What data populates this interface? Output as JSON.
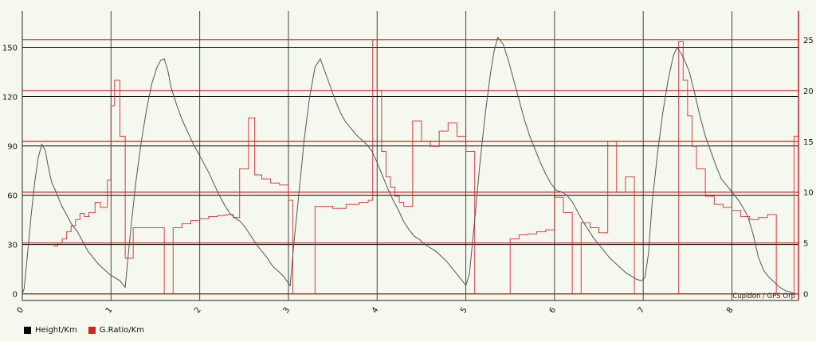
{
  "credit": "Cupidon / GPS Orp",
  "colors": {
    "background": "#f5f8ef",
    "height": "#555555",
    "ratio": "#d62a2a",
    "grid_black": "#000000",
    "grid_red": "#c91f1f"
  },
  "legend": [
    {
      "label": "Height/Km",
      "color": "#000000"
    },
    {
      "label": "G.Ratio/Km",
      "color": "#e02020"
    }
  ],
  "chart_data": {
    "type": "line",
    "x_label": "",
    "x_range": [
      0,
      8.75
    ],
    "x_ticks": [
      "0",
      "1",
      "2",
      "3",
      "4",
      "5",
      "6",
      "7",
      "8"
    ],
    "y_left": {
      "range": [
        -4,
        172
      ],
      "ticks": [
        "0",
        "30",
        "60",
        "90",
        "120",
        "150"
      ]
    },
    "y_right": {
      "range": [
        -0.65,
        27.8
      ],
      "ticks": [
        "0",
        "5",
        "10",
        "15",
        "20",
        "25"
      ]
    },
    "grid": true,
    "series": [
      {
        "name": "Height/Km",
        "axis": "left",
        "x": [
          0,
          0.02,
          0.06,
          0.1,
          0.14,
          0.18,
          0.22,
          0.26,
          0.29,
          0.33,
          0.38,
          0.44,
          0.5,
          0.56,
          0.62,
          0.68,
          0.74,
          0.8,
          0.86,
          0.92,
          0.98,
          1.04,
          1.1,
          1.16,
          1.22,
          1.28,
          1.34,
          1.4,
          1.46,
          1.52,
          1.56,
          1.6,
          1.64,
          1.68,
          1.74,
          1.8,
          1.86,
          1.92,
          1.98,
          2.04,
          2.1,
          2.16,
          2.22,
          2.28,
          2.34,
          2.4,
          2.46,
          2.52,
          2.58,
          2.64,
          2.7,
          2.76,
          2.82,
          2.88,
          2.94,
          2.98,
          3.02,
          3.06,
          3.12,
          3.18,
          3.24,
          3.3,
          3.36,
          3.4,
          3.46,
          3.52,
          3.58,
          3.64,
          3.7,
          3.76,
          3.82,
          3.88,
          3.94,
          4.0,
          4.06,
          4.12,
          4.18,
          4.24,
          4.3,
          4.36,
          4.42,
          4.48,
          4.54,
          4.6,
          4.66,
          4.72,
          4.78,
          4.84,
          4.9,
          4.96,
          5.0,
          5.04,
          5.1,
          5.16,
          5.22,
          5.28,
          5.32,
          5.36,
          5.42,
          5.48,
          5.54,
          5.6,
          5.66,
          5.72,
          5.78,
          5.84,
          5.9,
          5.96,
          6.02,
          6.08,
          6.14,
          6.2,
          6.26,
          6.32,
          6.38,
          6.44,
          6.5,
          6.56,
          6.62,
          6.68,
          6.74,
          6.8,
          6.86,
          6.92,
          6.98,
          7.02,
          7.06,
          7.1,
          7.16,
          7.22,
          7.28,
          7.34,
          7.38,
          7.42,
          7.46,
          7.52,
          7.58,
          7.64,
          7.7,
          7.76,
          7.82,
          7.88,
          7.94,
          8.0,
          8.06,
          8.12,
          8.18,
          8.24,
          8.3,
          8.36,
          8.42,
          8.48,
          8.54,
          8.6,
          8.66,
          8.72
        ],
        "y": [
          0,
          3,
          25,
          48,
          68,
          83,
          91,
          87,
          78,
          68,
          62,
          54,
          48,
          42,
          38,
          32,
          26,
          22,
          18,
          15,
          12,
          10,
          8,
          4,
          38,
          68,
          92,
          112,
          128,
          138,
          142,
          143,
          136,
          125,
          115,
          106,
          99,
          92,
          86,
          80,
          74,
          67,
          60,
          54,
          49,
          46,
          44,
          40,
          35,
          30,
          26,
          22,
          17,
          14,
          11,
          8,
          5,
          30,
          62,
          95,
          120,
          138,
          143,
          137,
          128,
          119,
          111,
          105,
          101,
          97,
          94,
          91,
          87,
          80,
          72,
          64,
          57,
          51,
          44,
          39,
          35,
          33,
          30,
          28,
          26,
          23,
          20,
          16,
          12,
          8,
          5,
          12,
          45,
          80,
          110,
          135,
          148,
          156,
          152,
          142,
          130,
          118,
          106,
          96,
          88,
          80,
          73,
          67,
          63,
          62,
          60,
          56,
          50,
          44,
          39,
          34,
          30,
          26,
          22,
          19,
          16,
          13,
          11,
          9,
          8,
          10,
          25,
          55,
          85,
          110,
          130,
          145,
          150,
          147,
          143,
          135,
          122,
          108,
          96,
          87,
          78,
          70,
          66,
          62,
          58,
          53,
          47,
          36,
          22,
          14,
          10,
          7,
          4,
          2,
          1,
          0
        ]
      },
      {
        "name": "G.Ratio/Km",
        "axis": "right",
        "x": [
          0.35,
          0.4,
          0.45,
          0.5,
          0.55,
          0.6,
          0.65,
          0.7,
          0.75,
          0.82,
          0.88,
          0.96,
          1.0,
          1.04,
          1.1,
          1.16,
          1.25,
          1.6,
          1.7,
          1.8,
          1.9,
          2.0,
          2.1,
          2.2,
          2.3,
          2.38,
          2.45,
          2.55,
          2.62,
          2.7,
          2.8,
          2.9,
          3.0,
          3.05,
          3.1,
          3.15,
          3.2,
          3.3,
          3.5,
          3.65,
          3.8,
          3.9,
          3.95,
          4.0,
          4.05,
          4.1,
          4.15,
          4.2,
          4.25,
          4.3,
          4.4,
          4.5,
          4.6,
          4.7,
          4.8,
          4.9,
          5.0,
          5.1,
          5.2,
          5.3,
          5.4,
          5.5,
          5.6,
          5.7,
          5.8,
          5.9,
          6.0,
          6.1,
          6.2,
          6.3,
          6.4,
          6.5,
          6.6,
          6.7,
          6.8,
          6.9,
          7.0,
          7.1,
          7.2,
          7.3,
          7.4,
          7.45,
          7.5,
          7.55,
          7.6,
          7.7,
          7.8,
          7.9,
          8.0,
          8.1,
          8.2,
          8.3,
          8.4,
          8.5,
          8.6,
          8.7
        ],
        "y": [
          4.7,
          5.0,
          5.4,
          6.1,
          6.7,
          7.3,
          7.9,
          7.6,
          8.0,
          9.0,
          8.5,
          11.2,
          18.5,
          21.0,
          15.5,
          3.5,
          6.5,
          0.0,
          6.5,
          6.9,
          7.2,
          7.4,
          7.6,
          7.7,
          7.8,
          7.5,
          12.3,
          17.3,
          11.7,
          11.3,
          10.9,
          10.7,
          9.2,
          0.0,
          0.0,
          0.0,
          0.0,
          8.6,
          8.4,
          8.8,
          9.0,
          9.2,
          25.0,
          20.0,
          14.0,
          11.5,
          10.5,
          9.6,
          9.0,
          8.6,
          17.0,
          15.0,
          14.5,
          16.0,
          16.8,
          15.5,
          14.0,
          0.0,
          0.0,
          0.0,
          0.0,
          5.4,
          5.8,
          5.9,
          6.1,
          6.3,
          9.5,
          8.0,
          0.0,
          7.0,
          6.5,
          6.0,
          15.0,
          10.0,
          11.5,
          0.0,
          0.0,
          0.0,
          0.0,
          0.0,
          24.8,
          21.0,
          17.5,
          14.5,
          12.3,
          9.6,
          8.8,
          8.5,
          8.2,
          7.6,
          7.3,
          7.5,
          7.8,
          0.0,
          0.0,
          15.5
        ]
      }
    ]
  }
}
